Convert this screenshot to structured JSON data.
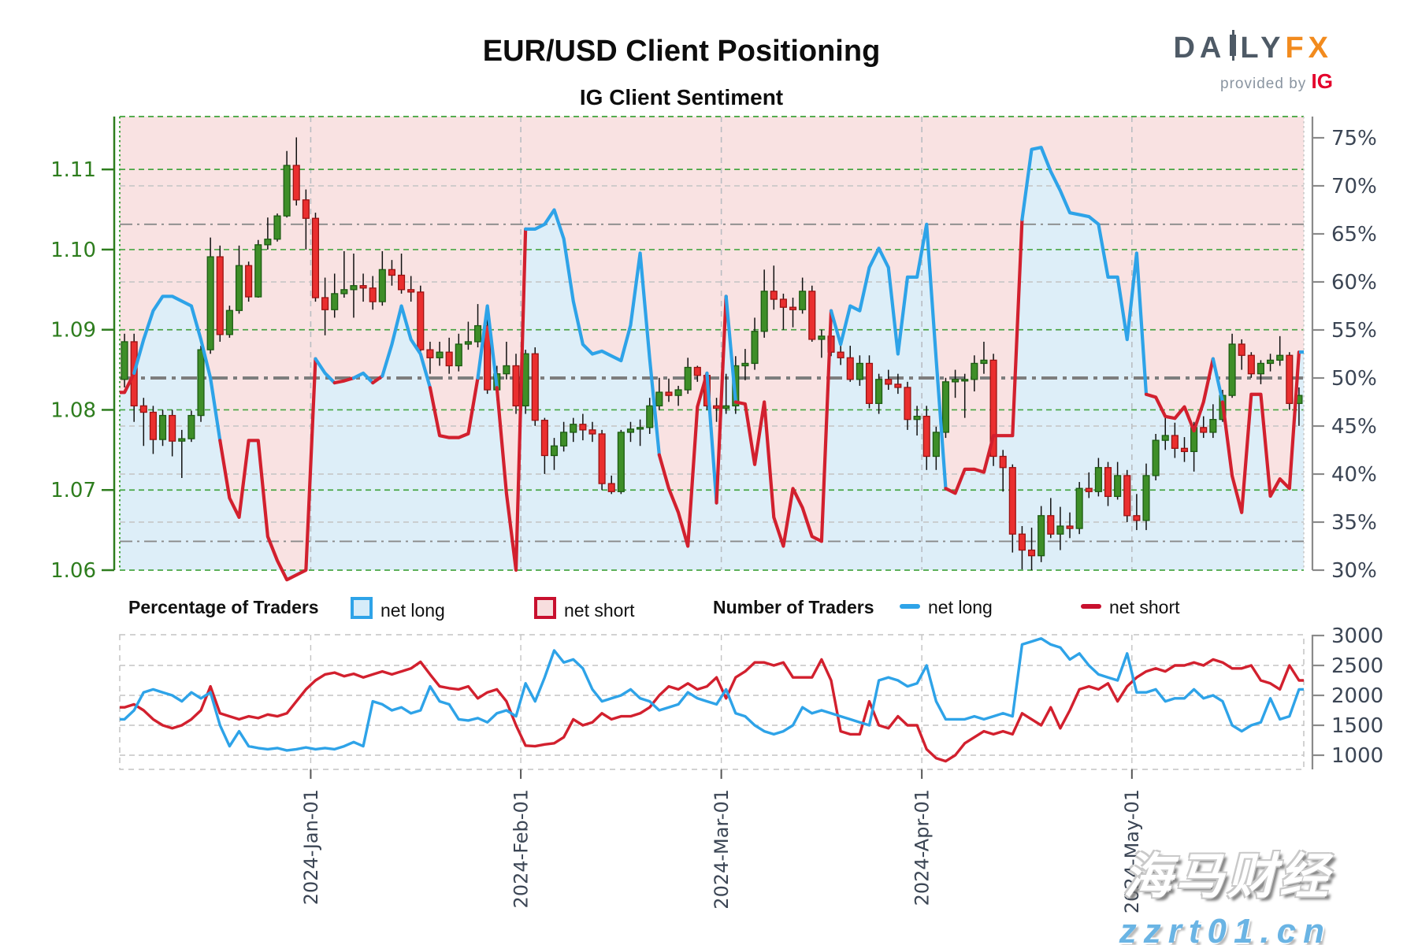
{
  "title": "EUR/USD Client Positioning",
  "subtitle": "IG Client Sentiment",
  "logo": {
    "part1": "DA",
    "part2": "LY",
    "part3": "FX",
    "provided_by": "provided by",
    "ig": "IG",
    "candle_icon": "candlestick-i-glyph"
  },
  "watermark": {
    "line1": "海马财经",
    "line2": "zzrt01.cn"
  },
  "legend": {
    "pct_title": "Percentage of Traders",
    "pct_long_label": "net long",
    "pct_short_label": "net short",
    "num_title": "Number of Traders",
    "num_long_label": "net long",
    "num_short_label": "net short"
  },
  "colors": {
    "net_long_line": "#2ea3e8",
    "net_short_line": "#d2202e",
    "net_long_fill": "#ddeef8",
    "net_short_fill": "#f9e2e2",
    "candle_up": "#3e8e28",
    "candle_up_border": "#1c5c12",
    "candle_down": "#ea2f2f",
    "candle_down_border": "#9c1212",
    "price_axis": "#2e7d1e",
    "pct_axis_text": "#3b4554",
    "grid_green": "#3fa33a",
    "grid_gray": "#c3c3c3",
    "refline_gray": "#8a8a8a"
  },
  "chart_data": {
    "type": "candlestick+line",
    "title": "IG Client Sentiment",
    "price_axis_ticks": [
      1.11,
      1.1,
      1.09,
      1.08,
      1.07,
      1.06
    ],
    "pct_axis_ticks": [
      "75%",
      "70%",
      "65%",
      "60%",
      "55%",
      "50%",
      "45%",
      "40%",
      "35%",
      "30%"
    ],
    "pct_axis_values": [
      75,
      70,
      65,
      60,
      55,
      50,
      45,
      40,
      35,
      30
    ],
    "num_axis_ticks": [
      "3000",
      "2500",
      "2000",
      "1500",
      "1000"
    ],
    "num_axis_values": [
      3000,
      2500,
      2000,
      1500,
      1000
    ],
    "pct_reference_lines": [
      66,
      50,
      33
    ],
    "price_grid_lines": [
      1.06,
      1.07,
      1.08,
      1.09,
      1.1,
      1.11
    ],
    "pct_grid_lines": [
      35,
      40,
      45,
      55,
      60,
      70
    ],
    "x_labels": [
      {
        "label": "2024-Jan-01",
        "boundary": 20
      },
      {
        "label": "2024-Feb-01",
        "boundary": 42
      },
      {
        "label": "2024-Mar-01",
        "boundary": 63
      },
      {
        "label": "2024-Apr-01",
        "boundary": 84
      },
      {
        "label": "2024-May-01",
        "boundary": 106
      }
    ],
    "candles": [
      [
        1.0838,
        1.0895,
        1.0828,
        1.0885
      ],
      [
        1.0885,
        1.0895,
        1.0785,
        1.0805
      ],
      [
        1.0805,
        1.0815,
        1.0755,
        1.0797
      ],
      [
        1.0797,
        1.0805,
        1.0745,
        1.0763
      ],
      [
        1.0763,
        1.08,
        1.0755,
        1.0793
      ],
      [
        1.0793,
        1.08,
        1.0742,
        1.0761
      ],
      [
        1.0761,
        1.0775,
        1.0715,
        1.0764
      ],
      [
        1.0764,
        1.0799,
        1.076,
        1.0793
      ],
      [
        1.0793,
        1.088,
        1.0785,
        1.0875
      ],
      [
        1.0875,
        1.1015,
        1.087,
        1.0991
      ],
      [
        1.0991,
        1.1005,
        1.0885,
        1.0894
      ],
      [
        1.0894,
        1.093,
        1.089,
        1.0924
      ],
      [
        1.0924,
        1.1005,
        1.092,
        1.098
      ],
      [
        1.098,
        1.0985,
        1.0935,
        1.0941
      ],
      [
        1.0941,
        1.1012,
        1.094,
        1.1006
      ],
      [
        1.1006,
        1.104,
        1.1,
        1.1013
      ],
      [
        1.1013,
        1.1045,
        1.101,
        1.1042
      ],
      [
        1.1042,
        1.1123,
        1.104,
        1.1105
      ],
      [
        1.1105,
        1.114,
        1.1055,
        1.1062
      ],
      [
        1.1062,
        1.1075,
        1.1,
        1.1039
      ],
      [
        1.1039,
        1.1046,
        1.0935,
        1.094
      ],
      [
        1.094,
        1.0965,
        1.0893,
        1.0925
      ],
      [
        1.0925,
        1.097,
        1.0915,
        1.0945
      ],
      [
        1.0945,
        1.0998,
        1.094,
        1.095
      ],
      [
        1.095,
        1.0995,
        1.0915,
        1.0955
      ],
      [
        1.0955,
        1.097,
        1.0935,
        1.0952
      ],
      [
        1.0952,
        1.0967,
        1.0925,
        1.0935
      ],
      [
        1.0935,
        1.0998,
        1.093,
        1.0975
      ],
      [
        1.0975,
        1.0987,
        1.0955,
        1.0968
      ],
      [
        1.0968,
        1.0995,
        1.0945,
        1.095
      ],
      [
        1.095,
        1.0967,
        1.0935,
        1.0947
      ],
      [
        1.0947,
        1.0955,
        1.0865,
        1.0875
      ],
      [
        1.0875,
        1.0885,
        1.0845,
        1.0865
      ],
      [
        1.0865,
        1.0885,
        1.0855,
        1.0872
      ],
      [
        1.0872,
        1.089,
        1.0845,
        1.0855
      ],
      [
        1.0855,
        1.0895,
        1.0848,
        1.0882
      ],
      [
        1.0882,
        1.091,
        1.0875,
        1.0885
      ],
      [
        1.0885,
        1.0932,
        1.0878,
        1.0905
      ],
      [
        1.0905,
        1.0915,
        1.082,
        1.0825
      ],
      [
        1.0825,
        1.0855,
        1.0812,
        1.0845
      ],
      [
        1.0845,
        1.0885,
        1.0838,
        1.0855
      ],
      [
        1.0855,
        1.087,
        1.0795,
        1.0805
      ],
      [
        1.0805,
        1.0875,
        1.0795,
        1.087
      ],
      [
        1.087,
        1.0878,
        1.078,
        1.0787
      ],
      [
        1.0787,
        1.079,
        1.072,
        1.0743
      ],
      [
        1.0743,
        1.0765,
        1.0725,
        1.0755
      ],
      [
        1.0755,
        1.0785,
        1.0748,
        1.0772
      ],
      [
        1.0772,
        1.079,
        1.076,
        1.0782
      ],
      [
        1.0782,
        1.0795,
        1.0762,
        1.0775
      ],
      [
        1.0775,
        1.0785,
        1.076,
        1.077
      ],
      [
        1.077,
        1.0775,
        1.07,
        1.0708
      ],
      [
        1.0708,
        1.0718,
        1.0695,
        1.0698
      ],
      [
        1.0698,
        1.0775,
        1.0695,
        1.0772
      ],
      [
        1.0772,
        1.0785,
        1.076,
        1.0776
      ],
      [
        1.0776,
        1.0788,
        1.0755,
        1.0778
      ],
      [
        1.0778,
        1.0815,
        1.077,
        1.0805
      ],
      [
        1.0805,
        1.084,
        1.08,
        1.0822
      ],
      [
        1.0822,
        1.0839,
        1.081,
        1.0818
      ],
      [
        1.0818,
        1.083,
        1.0805,
        1.0825
      ],
      [
        1.0825,
        1.0865,
        1.082,
        1.0853
      ],
      [
        1.0853,
        1.0855,
        1.0835,
        1.0843
      ],
      [
        1.0843,
        1.0845,
        1.08,
        1.0805
      ],
      [
        1.0805,
        1.0815,
        1.0785,
        1.0802
      ],
      [
        1.0802,
        1.0845,
        1.0795,
        1.0805
      ],
      [
        1.0805,
        1.0867,
        1.0795,
        1.0855
      ],
      [
        1.0855,
        1.0876,
        1.0837,
        1.0858
      ],
      [
        1.0858,
        1.0915,
        1.085,
        1.0898
      ],
      [
        1.0898,
        1.0975,
        1.089,
        1.0948
      ],
      [
        1.0948,
        1.098,
        1.0925,
        1.0938
      ],
      [
        1.0938,
        1.0945,
        1.09,
        1.0928
      ],
      [
        1.0928,
        1.094,
        1.0903,
        1.0925
      ],
      [
        1.0925,
        1.0965,
        1.092,
        1.0948
      ],
      [
        1.0948,
        1.0955,
        1.0885,
        1.0888
      ],
      [
        1.0888,
        1.09,
        1.0865,
        1.0892
      ],
      [
        1.0892,
        1.0905,
        1.0867,
        1.0872
      ],
      [
        1.0872,
        1.0885,
        1.0856,
        1.0865
      ],
      [
        1.0865,
        1.088,
        1.0835,
        1.0838
      ],
      [
        1.0838,
        1.0868,
        1.083,
        1.0858
      ],
      [
        1.0858,
        1.0868,
        1.0802,
        1.0808
      ],
      [
        1.0808,
        1.0845,
        1.0795,
        1.0838
      ],
      [
        1.0838,
        1.085,
        1.0825,
        1.0832
      ],
      [
        1.0832,
        1.0845,
        1.082,
        1.0828
      ],
      [
        1.0828,
        1.0835,
        1.0775,
        1.0788
      ],
      [
        1.0788,
        1.0805,
        1.0768,
        1.0792
      ],
      [
        1.0792,
        1.0805,
        1.0725,
        1.0742
      ],
      [
        1.0742,
        1.0779,
        1.0725,
        1.0772
      ],
      [
        1.0772,
        1.084,
        1.0765,
        1.0835
      ],
      [
        1.0835,
        1.085,
        1.0815,
        1.0838
      ],
      [
        1.0838,
        1.0845,
        1.079,
        1.0838
      ],
      [
        1.0838,
        1.0868,
        1.0823,
        1.0858
      ],
      [
        1.0858,
        1.0885,
        1.0845,
        1.0862
      ],
      [
        1.0862,
        1.087,
        1.073,
        1.0742
      ],
      [
        1.0742,
        1.075,
        1.0698,
        1.0728
      ],
      [
        1.0728,
        1.0732,
        1.0622,
        1.0645
      ],
      [
        1.0645,
        1.0655,
        1.0601,
        1.0625
      ],
      [
        1.0625,
        1.0653,
        1.06,
        1.0618
      ],
      [
        1.0618,
        1.068,
        1.061,
        1.0668
      ],
      [
        1.0668,
        1.069,
        1.064,
        1.0645
      ],
      [
        1.0645,
        1.0679,
        1.0625,
        1.0655
      ],
      [
        1.0655,
        1.0672,
        1.064,
        1.0652
      ],
      [
        1.0652,
        1.071,
        1.0645,
        1.0702
      ],
      [
        1.0702,
        1.0722,
        1.069,
        1.0698
      ],
      [
        1.0698,
        1.074,
        1.0692,
        1.0728
      ],
      [
        1.0728,
        1.0735,
        1.068,
        1.0692
      ],
      [
        1.0692,
        1.0735,
        1.0688,
        1.0718
      ],
      [
        1.0718,
        1.0725,
        1.066,
        1.0668
      ],
      [
        1.0668,
        1.0695,
        1.065,
        1.0662
      ],
      [
        1.0662,
        1.0733,
        1.065,
        1.0718
      ],
      [
        1.0718,
        1.077,
        1.0712,
        1.0762
      ],
      [
        1.0762,
        1.079,
        1.075,
        1.0768
      ],
      [
        1.0768,
        1.0784,
        1.074,
        1.0752
      ],
      [
        1.0752,
        1.0766,
        1.0735,
        1.0748
      ],
      [
        1.0748,
        1.0785,
        1.0723,
        1.0778
      ],
      [
        1.0778,
        1.0792,
        1.0765,
        1.0772
      ],
      [
        1.0772,
        1.0807,
        1.0765,
        1.0788
      ],
      [
        1.0788,
        1.0825,
        1.0785,
        1.0818
      ],
      [
        1.0818,
        1.0895,
        1.0815,
        1.0882
      ],
      [
        1.0882,
        1.0888,
        1.085,
        1.0868
      ],
      [
        1.0868,
        1.0872,
        1.084,
        1.0845
      ],
      [
        1.0845,
        1.0862,
        1.0832,
        1.0858
      ],
      [
        1.0858,
        1.087,
        1.0848,
        1.0862
      ],
      [
        1.0862,
        1.0892,
        1.0855,
        1.0868
      ],
      [
        1.0868,
        1.0872,
        1.08,
        1.0808
      ],
      [
        1.0808,
        1.0828,
        1.078,
        1.0818
      ]
    ],
    "pct_net_long": [
      48.5,
      50.5,
      54,
      57,
      58.5,
      58.5,
      58,
      57.5,
      54,
      50,
      43.5,
      37.5,
      35.5,
      43.5,
      43.5,
      33.5,
      31,
      29,
      29.5,
      30,
      52,
      50.5,
      49.5,
      49.7,
      50,
      50.5,
      49.5,
      50.2,
      53.5,
      57.5,
      54,
      52.5,
      49,
      44,
      43.8,
      43.8,
      44.2,
      50,
      57.5,
      49,
      38,
      30,
      65.5,
      65.5,
      66,
      67.5,
      64.5,
      58,
      53.5,
      52.5,
      52.8,
      52.3,
      51.8,
      55.5,
      63,
      52,
      42,
      38.5,
      36,
      32.5,
      47,
      50.5,
      37,
      58.5,
      47.5,
      47.3,
      41,
      47.5,
      35.5,
      32.5,
      38.5,
      36.5,
      33.5,
      33,
      57,
      53.5,
      57.5,
      57,
      61.5,
      63.5,
      61.5,
      52.5,
      60.5,
      60.5,
      66,
      52,
      38.5,
      38,
      40.5,
      40.5,
      40.2,
      44,
      44,
      44,
      66.5,
      73.8,
      74,
      71.5,
      69.5,
      67.2,
      67,
      66.8,
      66,
      60.5,
      60.5,
      54,
      63,
      48.3,
      48,
      46,
      45.8,
      47,
      44.5,
      47.5,
      52,
      47.5,
      39.8,
      36,
      48.3,
      48.3,
      37.7,
      39.5,
      38.5,
      52.7
    ],
    "num_long": [
      1600,
      1750,
      2050,
      2100,
      2050,
      2000,
      1900,
      2050,
      1950,
      2050,
      1500,
      1150,
      1400,
      1150,
      1120,
      1100,
      1120,
      1080,
      1100,
      1130,
      1100,
      1120,
      1100,
      1150,
      1220,
      1150,
      1900,
      1850,
      1750,
      1800,
      1700,
      1750,
      2150,
      1900,
      1850,
      1600,
      1580,
      1620,
      1550,
      1700,
      1750,
      1650,
      2200,
      1900,
      2300,
      2750,
      2550,
      2600,
      2450,
      2100,
      1900,
      1950,
      2000,
      2100,
      1950,
      1900,
      1750,
      1800,
      1850,
      2050,
      1950,
      1900,
      1850,
      2100,
      1700,
      1650,
      1500,
      1400,
      1350,
      1400,
      1500,
      1800,
      1700,
      1750,
      1700,
      1650,
      1600,
      1550,
      1500,
      2250,
      2300,
      2250,
      2150,
      2200,
      2500,
      1900,
      1600,
      1600,
      1600,
      1650,
      1600,
      1650,
      1700,
      1650,
      2850,
      2900,
      2950,
      2850,
      2800,
      2600,
      2700,
      2500,
      2350,
      2300,
      2250,
      2700,
      2050,
      2050,
      2100,
      1900,
      1950,
      1950,
      2100,
      1950,
      2000,
      1900,
      1500,
      1400,
      1500,
      1550,
      1950,
      1600,
      1650,
      2100
    ],
    "num_short": [
      1800,
      1850,
      1750,
      1600,
      1500,
      1450,
      1500,
      1600,
      1750,
      2150,
      1700,
      1650,
      1600,
      1650,
      1620,
      1680,
      1650,
      1700,
      1900,
      2100,
      2250,
      2350,
      2380,
      2320,
      2360,
      2300,
      2350,
      2400,
      2350,
      2400,
      2450,
      2560,
      2350,
      2150,
      2120,
      2100,
      2150,
      1950,
      2050,
      2100,
      1900,
      1500,
      1160,
      1150,
      1180,
      1200,
      1300,
      1600,
      1500,
      1550,
      1700,
      1600,
      1650,
      1650,
      1700,
      1800,
      2000,
      2150,
      2100,
      2200,
      2100,
      2150,
      2300,
      1950,
      2300,
      2400,
      2550,
      2550,
      2500,
      2550,
      2300,
      2300,
      2300,
      2600,
      2250,
      1400,
      1350,
      1350,
      1900,
      1500,
      1450,
      1650,
      1500,
      1500,
      1100,
      950,
      900,
      1000,
      1200,
      1300,
      1400,
      1350,
      1400,
      1350,
      1700,
      1600,
      1500,
      1800,
      1450,
      1750,
      2100,
      2150,
      2100,
      2200,
      1900,
      2150,
      2300,
      2400,
      2450,
      2400,
      2500,
      2500,
      2550,
      2500,
      2600,
      2550,
      2450,
      2450,
      2500,
      2250,
      2200,
      2100,
      2500,
      2250
    ]
  }
}
